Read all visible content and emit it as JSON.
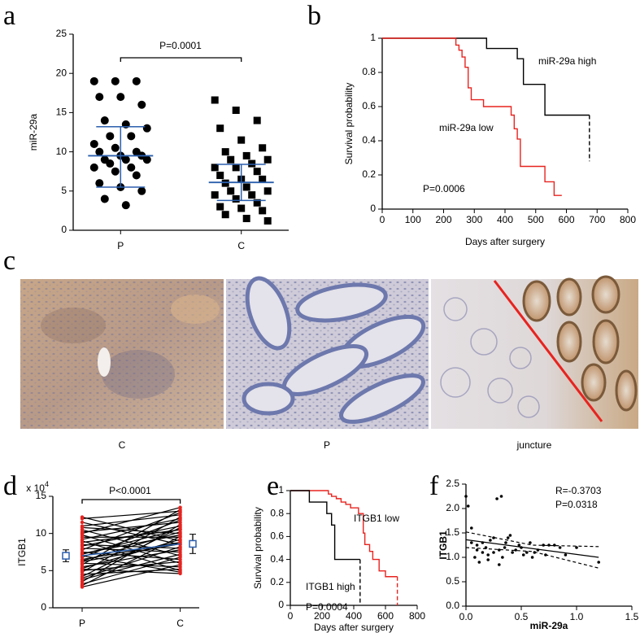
{
  "chart_data": [
    {
      "panel": "a",
      "type": "dotplot",
      "ylabel": "miR-29a",
      "categories": [
        "P",
        "C"
      ],
      "values": [
        [
          19,
          19,
          19,
          17,
          17,
          16,
          14,
          13.5,
          13,
          12,
          12,
          11,
          10.5,
          10,
          10,
          9.5,
          9.5,
          9,
          9,
          9,
          8.5,
          8,
          8,
          7.5,
          7,
          6,
          5.5,
          5,
          4,
          3.2
        ],
        [
          16.6,
          15.3,
          14,
          13,
          11.5,
          10.5,
          10,
          9.5,
          9,
          9,
          8.5,
          8,
          8,
          7.5,
          7,
          6.5,
          6.5,
          6,
          5.5,
          5,
          5,
          4.5,
          4.5,
          4,
          3.5,
          3,
          2.8,
          2.5,
          2,
          1.5,
          1.2
        ]
      ],
      "markers": [
        "circle",
        "square"
      ],
      "color": "#000000",
      "means": [
        9.5,
        6.1
      ],
      "sd_range": [
        [
          5.5,
          13.2
        ],
        [
          3.8,
          8.4
        ]
      ],
      "summary_color": "#2b5fad",
      "ylim": [
        0,
        25
      ],
      "yticks": [
        0,
        5,
        10,
        15,
        20,
        25
      ],
      "annotation": "P=0.0001"
    },
    {
      "panel": "b",
      "type": "survival",
      "xlabel": "Days after surgery",
      "ylabel": "Survival probability",
      "series": [
        {
          "name": "miR-29a high",
          "color": "#000000",
          "dashed_end": true,
          "x": [
            0,
            340,
            440,
            460,
            530,
            675
          ],
          "values": [
            1,
            0.94,
            0.88,
            0.73,
            0.55,
            0.28
          ]
        },
        {
          "name": "miR-29a low",
          "color": "#e8231f",
          "dashed_end": false,
          "x": [
            0,
            240,
            250,
            260,
            270,
            280,
            290,
            330,
            420,
            430,
            440,
            450,
            530,
            560,
            585
          ],
          "values": [
            1,
            0.96,
            0.93,
            0.89,
            0.83,
            0.71,
            0.64,
            0.6,
            0.55,
            0.47,
            0.41,
            0.25,
            0.16,
            0.08,
            0.08
          ]
        }
      ],
      "annotation": "P=0.0006",
      "xlim": [
        0,
        800
      ],
      "xticks": [
        0,
        100,
        200,
        300,
        400,
        500,
        600,
        700,
        800
      ],
      "ylim": [
        0,
        1
      ],
      "yticks": [
        0,
        0.2,
        0.4,
        0.6,
        0.8,
        1
      ]
    },
    {
      "panel": "d",
      "type": "paired",
      "ylabel": "ITGB1",
      "y_scale": "x 10",
      "y_scale_exponent": "4",
      "categories": [
        "P",
        "C"
      ],
      "values": [
        [
          12.2,
          12,
          11.5,
          11,
          10.8,
          10.5,
          10.2,
          10,
          9.8,
          9.5,
          9.2,
          9,
          8.8,
          8.5,
          8.3,
          8,
          7.8,
          7.5,
          7.3,
          7,
          6.8,
          6.5,
          6.3,
          6,
          5.8,
          5.5,
          5.3,
          5,
          4.8,
          4.5,
          4.2,
          4,
          3.8,
          3.5,
          3.2,
          3,
          2.8,
          5.2,
          6.2,
          7.2
        ],
        [
          9,
          13,
          8.5,
          12.5,
          10,
          7,
          11.5,
          13.5,
          6,
          9.5,
          12,
          5,
          10.5,
          8,
          11,
          7.5,
          12.8,
          6.5,
          9.8,
          4.8,
          11.8,
          8.8,
          10.2,
          5.5,
          13.2,
          7.8,
          9.2,
          6.2,
          12.2,
          5.2,
          10.8,
          8.2,
          7.2,
          11.2,
          6.8,
          9.6,
          5.8,
          4.6,
          8.6,
          10.6
        ]
      ],
      "color": "#000000",
      "point_color": "#e8231f",
      "means": [
        7,
        8.6
      ],
      "errors": [
        0.8,
        1.3
      ],
      "summary_color": "#2b5fad",
      "ylim": [
        0,
        15
      ],
      "yticks": [
        0,
        5,
        10,
        15
      ],
      "annotation": "P<0.0001"
    },
    {
      "panel": "e",
      "type": "survival",
      "xlabel": "Days after surgery",
      "ylabel": "Survival probability",
      "series": [
        {
          "name": "ITGB1 low",
          "color": "#e8231f",
          "dashed_end": true,
          "x": [
            0,
            240,
            260,
            290,
            320,
            350,
            380,
            430,
            460,
            470,
            500,
            520,
            560,
            600,
            675
          ],
          "values": [
            1,
            0.97,
            0.95,
            0.93,
            0.9,
            0.88,
            0.85,
            0.8,
            0.63,
            0.53,
            0.47,
            0.4,
            0.3,
            0.25,
            0
          ]
        },
        {
          "name": "ITGB1 high",
          "color": "#000000",
          "dashed_end": true,
          "x": [
            0,
            120,
            230,
            260,
            280,
            440
          ],
          "values": [
            1,
            0.9,
            0.8,
            0.7,
            0.4,
            0
          ]
        }
      ],
      "annotation": "P=0.0004",
      "xlim": [
        0,
        800
      ],
      "xticks": [
        0,
        200,
        400,
        600,
        800
      ],
      "ylim": [
        0,
        1
      ],
      "yticks": [
        0,
        0.2,
        0.4,
        0.6,
        0.8,
        1
      ]
    },
    {
      "panel": "f",
      "type": "scatter",
      "xlabel": "miR-29a",
      "ylabel": "ITGB1",
      "x": [
        0.0,
        0.02,
        0.05,
        0.05,
        0.08,
        0.1,
        0.1,
        0.12,
        0.15,
        0.15,
        0.18,
        0.2,
        0.2,
        0.22,
        0.25,
        0.25,
        0.28,
        0.3,
        0.3,
        0.32,
        0.33,
        0.35,
        0.36,
        0.38,
        0.4,
        0.42,
        0.45,
        0.48,
        0.5,
        0.52,
        0.55,
        0.58,
        0.6,
        0.62,
        0.65,
        0.7,
        0.72,
        0.75,
        0.8,
        0.85,
        0.9,
        1.0,
        1.2
      ],
      "values": [
        2.25,
        2.05,
        1.6,
        1.3,
        1.0,
        1.25,
        1.15,
        0.9,
        1.1,
        1.3,
        1.2,
        1.05,
        0.95,
        1.35,
        1.1,
        1.4,
        2.2,
        1.15,
        0.85,
        2.25,
        1.0,
        1.2,
        1.3,
        1.4,
        1.45,
        1.1,
        1.15,
        1.25,
        1.2,
        1.05,
        1.1,
        1.3,
        1.0,
        1.1,
        1.15,
        1.25,
        1.05,
        1.25,
        1.25,
        1.2,
        1.05,
        1.2,
        0.9
      ],
      "color": "#000000",
      "fit": {
        "x": [
          0,
          1.2
        ],
        "values": [
          1.36,
          1.0
        ]
      },
      "band_upper": {
        "x": [
          0,
          0.6,
          1.2
        ],
        "values": [
          1.52,
          1.25,
          1.22
        ]
      },
      "band_lower": {
        "x": [
          0,
          0.6,
          1.2
        ],
        "values": [
          1.2,
          1.12,
          0.78
        ]
      },
      "annotations": [
        "R=-0.3703",
        "P=0.0318"
      ],
      "xlim": [
        0,
        1.5
      ],
      "xticks": [
        {
          "value": 0,
          "label": "0.0"
        },
        {
          "value": 0.5,
          "label": "0.5"
        },
        {
          "value": 1,
          "label": "1.0"
        },
        {
          "value": 1.5,
          "label": "1.5"
        }
      ],
      "ylim": [
        0,
        2.5
      ],
      "yticks": [
        {
          "value": 0,
          "label": "0.0"
        },
        {
          "value": 0.5,
          "label": "0.5"
        },
        {
          "value": 1,
          "label": "1.0"
        },
        {
          "value": 1.5,
          "label": "1.5"
        },
        {
          "value": 2,
          "label": "2.0"
        },
        {
          "value": 2.5,
          "label": "2.5"
        }
      ]
    }
  ],
  "figure_c": {
    "panel": "c",
    "captions": [
      "C",
      "P",
      "juncture"
    ]
  }
}
